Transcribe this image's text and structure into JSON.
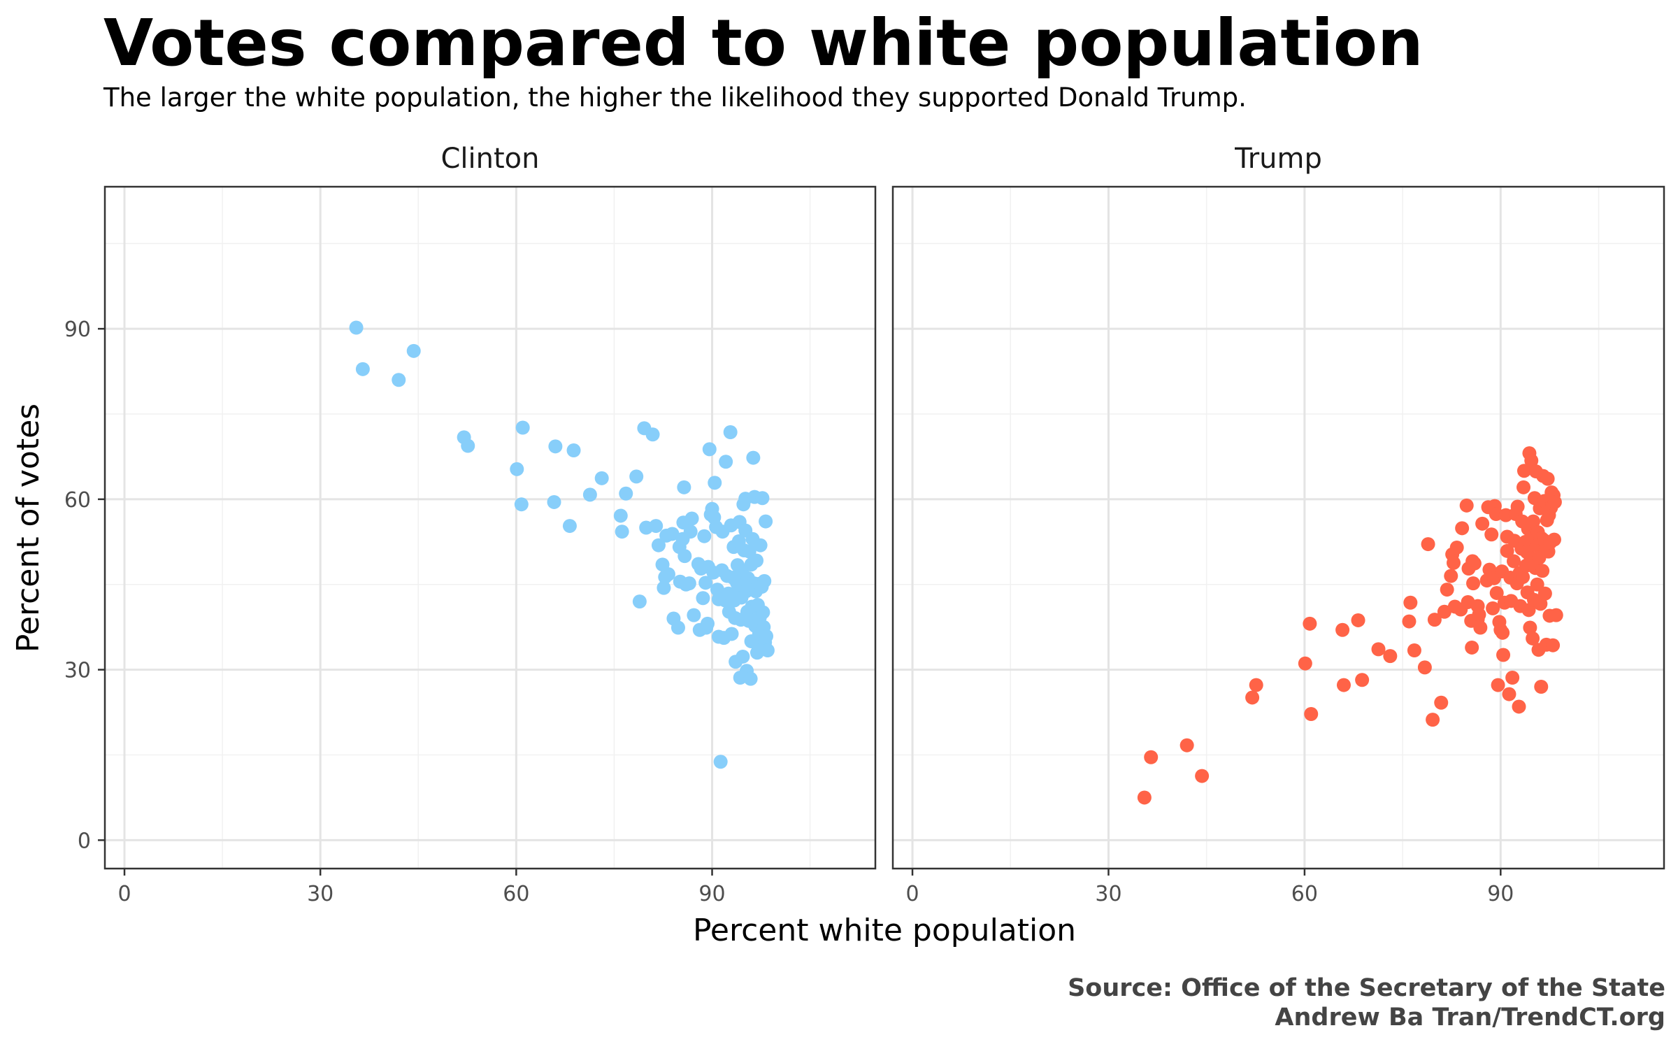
{
  "title": "Votes compared to white population",
  "subtitle": "The larger the white population, the higher the likelihood they supported Donald Trump.",
  "caption": {
    "line1": "Source: Office of the Secretary of the State",
    "line2": "Andrew Ba Tran/TrendCT.org"
  },
  "chart_data": {
    "type": "scatter",
    "xlabel": "Percent white population",
    "ylabel": "Percent of votes",
    "xlim": [
      -3,
      115
    ],
    "ylim": [
      -5,
      115
    ],
    "x_ticks": [
      0,
      30,
      60,
      90
    ],
    "y_ticks": [
      0,
      30,
      60,
      90
    ],
    "grid": true,
    "panels": [
      {
        "name": "Clinton",
        "color": "#87CEFA",
        "points": [
          [
            35.5,
            90.2
          ],
          [
            36.5,
            82.9
          ],
          [
            42.0,
            81.0
          ],
          [
            44.3,
            86.1
          ],
          [
            52.0,
            70.9
          ],
          [
            52.6,
            69.4
          ],
          [
            60.1,
            65.3
          ],
          [
            61.0,
            72.6
          ],
          [
            60.8,
            59.1
          ],
          [
            65.8,
            59.5
          ],
          [
            66.0,
            69.3
          ],
          [
            68.2,
            55.3
          ],
          [
            68.8,
            68.6
          ],
          [
            71.3,
            60.8
          ],
          [
            73.1,
            63.7
          ],
          [
            76.0,
            57.1
          ],
          [
            76.2,
            54.3
          ],
          [
            76.8,
            61.0
          ],
          [
            78.4,
            64.0
          ],
          [
            78.9,
            42.0
          ],
          [
            79.6,
            72.5
          ],
          [
            79.9,
            55.0
          ],
          [
            80.9,
            71.4
          ],
          [
            81.4,
            55.3
          ],
          [
            81.8,
            51.9
          ],
          [
            82.4,
            48.5
          ],
          [
            82.6,
            44.4
          ],
          [
            82.8,
            46.3
          ],
          [
            83.0,
            53.6
          ],
          [
            83.3,
            46.8
          ],
          [
            83.9,
            53.9
          ],
          [
            84.1,
            39.0
          ],
          [
            84.8,
            37.4
          ],
          [
            85.0,
            51.6
          ],
          [
            85.1,
            45.5
          ],
          [
            85.5,
            53.0
          ],
          [
            85.6,
            55.9
          ],
          [
            85.7,
            62.1
          ],
          [
            85.8,
            50.0
          ],
          [
            86.0,
            45.0
          ],
          [
            86.5,
            45.2
          ],
          [
            86.7,
            54.3
          ],
          [
            86.9,
            56.6
          ],
          [
            87.2,
            39.6
          ],
          [
            87.9,
            48.6
          ],
          [
            88.1,
            37.0
          ],
          [
            88.3,
            47.8
          ],
          [
            88.6,
            42.6
          ],
          [
            88.8,
            53.5
          ],
          [
            89.0,
            45.3
          ],
          [
            89.1,
            37.4
          ],
          [
            89.3,
            38.1
          ],
          [
            89.4,
            48.1
          ],
          [
            89.6,
            68.8
          ],
          [
            89.8,
            57.3
          ],
          [
            90.0,
            58.3
          ],
          [
            90.2,
            47.1
          ],
          [
            90.3,
            56.8
          ],
          [
            90.4,
            62.9
          ],
          [
            90.6,
            55.1
          ],
          [
            90.8,
            44.1
          ],
          [
            91.0,
            42.4
          ],
          [
            91.0,
            35.8
          ],
          [
            91.3,
            13.8
          ],
          [
            91.5,
            47.5
          ],
          [
            91.6,
            54.3
          ],
          [
            91.8,
            35.6
          ],
          [
            92.0,
            42.2
          ],
          [
            92.1,
            66.6
          ],
          [
            92.3,
            46.5
          ],
          [
            92.5,
            43.4
          ],
          [
            92.6,
            40.2
          ],
          [
            92.8,
            71.8
          ],
          [
            92.9,
            55.4
          ],
          [
            93.0,
            36.3
          ],
          [
            93.2,
            46.2
          ],
          [
            93.3,
            51.6
          ],
          [
            93.4,
            42.2
          ],
          [
            93.5,
            39.1
          ],
          [
            93.6,
            31.4
          ],
          [
            93.8,
            45.3
          ],
          [
            93.9,
            48.4
          ],
          [
            94.0,
            44.0
          ],
          [
            94.1,
            52.6
          ],
          [
            94.2,
            56.0
          ],
          [
            94.3,
            28.6
          ],
          [
            94.4,
            38.8
          ],
          [
            94.5,
            42.7
          ],
          [
            94.6,
            47.3
          ],
          [
            94.7,
            32.3
          ],
          [
            94.8,
            59.1
          ],
          [
            94.9,
            51.0
          ],
          [
            95.0,
            45.9
          ],
          [
            95.1,
            60.1
          ],
          [
            95.1,
            54.5
          ],
          [
            95.2,
            43.8
          ],
          [
            95.3,
            29.8
          ],
          [
            95.4,
            40.2
          ],
          [
            95.5,
            46.1
          ],
          [
            95.6,
            38.6
          ],
          [
            95.7,
            50.8
          ],
          [
            95.8,
            44.7
          ],
          [
            95.9,
            28.4
          ],
          [
            96.0,
            48.5
          ],
          [
            96.0,
            35.0
          ],
          [
            96.1,
            41.1
          ],
          [
            96.2,
            53.0
          ],
          [
            96.3,
            67.3
          ],
          [
            96.4,
            45.2
          ],
          [
            96.5,
            60.4
          ],
          [
            96.6,
            37.7
          ],
          [
            96.7,
            43.8
          ],
          [
            96.8,
            49.2
          ],
          [
            96.9,
            33.0
          ],
          [
            97.0,
            41.4
          ],
          [
            97.1,
            45.1
          ],
          [
            97.2,
            36.3
          ],
          [
            97.3,
            39.2
          ],
          [
            97.4,
            51.9
          ],
          [
            97.5,
            34.1
          ],
          [
            97.6,
            44.6
          ],
          [
            97.7,
            60.2
          ],
          [
            97.8,
            40.1
          ],
          [
            97.9,
            37.5
          ],
          [
            98.0,
            45.6
          ],
          [
            98.1,
            34.8
          ],
          [
            98.2,
            56.1
          ],
          [
            98.3,
            35.9
          ],
          [
            98.5,
            33.4
          ]
        ]
      },
      {
        "name": "Trump",
        "color": "#FF6347",
        "points": [
          [
            35.5,
            7.5
          ],
          [
            36.5,
            14.6
          ],
          [
            42.0,
            16.7
          ],
          [
            44.3,
            11.3
          ],
          [
            52.0,
            25.1
          ],
          [
            52.6,
            27.3
          ],
          [
            60.1,
            31.1
          ],
          [
            61.0,
            22.2
          ],
          [
            60.8,
            38.1
          ],
          [
            65.8,
            37.0
          ],
          [
            66.0,
            27.3
          ],
          [
            68.2,
            38.7
          ],
          [
            68.8,
            28.2
          ],
          [
            71.3,
            33.6
          ],
          [
            73.1,
            32.4
          ],
          [
            76.0,
            38.5
          ],
          [
            76.2,
            41.8
          ],
          [
            76.8,
            33.4
          ],
          [
            78.4,
            30.4
          ],
          [
            78.9,
            52.1
          ],
          [
            79.6,
            21.2
          ],
          [
            79.9,
            38.8
          ],
          [
            80.9,
            24.2
          ],
          [
            81.4,
            40.2
          ],
          [
            81.8,
            44.1
          ],
          [
            82.4,
            46.5
          ],
          [
            82.6,
            50.3
          ],
          [
            82.8,
            48.8
          ],
          [
            83.0,
            41.1
          ],
          [
            83.3,
            51.5
          ],
          [
            83.9,
            40.6
          ],
          [
            84.1,
            54.9
          ],
          [
            84.8,
            58.9
          ],
          [
            85.0,
            41.9
          ],
          [
            85.1,
            47.8
          ],
          [
            85.5,
            38.6
          ],
          [
            85.6,
            33.9
          ],
          [
            85.7,
            49.1
          ],
          [
            85.8,
            45.2
          ],
          [
            86.0,
            48.7
          ],
          [
            86.5,
            38.9
          ],
          [
            86.5,
            41.2
          ],
          [
            86.7,
            39.7
          ],
          [
            86.9,
            37.4
          ],
          [
            87.2,
            55.7
          ],
          [
            87.9,
            45.7
          ],
          [
            88.1,
            58.6
          ],
          [
            88.3,
            47.6
          ],
          [
            88.6,
            53.8
          ],
          [
            88.8,
            40.8
          ],
          [
            89.0,
            46.1
          ],
          [
            89.1,
            58.8
          ],
          [
            89.3,
            57.4
          ],
          [
            89.4,
            43.5
          ],
          [
            89.6,
            27.3
          ],
          [
            89.8,
            38.4
          ],
          [
            90.0,
            37.0
          ],
          [
            90.2,
            47.3
          ],
          [
            90.3,
            36.5
          ],
          [
            90.4,
            32.6
          ],
          [
            90.6,
            41.8
          ],
          [
            90.8,
            57.2
          ],
          [
            91.0,
            50.9
          ],
          [
            91.0,
            53.4
          ],
          [
            91.3,
            25.7
          ],
          [
            91.5,
            46.2
          ],
          [
            91.6,
            42.1
          ],
          [
            91.8,
            28.6
          ],
          [
            92.0,
            49.1
          ],
          [
            92.1,
            52.7
          ],
          [
            92.3,
            57.4
          ],
          [
            92.5,
            45.2
          ],
          [
            92.6,
            58.7
          ],
          [
            92.8,
            23.5
          ],
          [
            92.9,
            47.0
          ],
          [
            93.0,
            41.2
          ],
          [
            93.2,
            51.3
          ],
          [
            93.3,
            56.1
          ],
          [
            93.4,
            46.3
          ],
          [
            93.5,
            62.1
          ],
          [
            93.6,
            65.0
          ],
          [
            93.8,
            52.5
          ],
          [
            93.9,
            48.3
          ],
          [
            94.0,
            50.7
          ],
          [
            94.1,
            43.6
          ],
          [
            94.2,
            54.8
          ],
          [
            94.3,
            40.5
          ],
          [
            94.4,
            68.1
          ],
          [
            94.5,
            37.4
          ],
          [
            94.6,
            49.6
          ],
          [
            94.7,
            66.8
          ],
          [
            94.8,
            53.4
          ],
          [
            94.9,
            35.5
          ],
          [
            95.0,
            56.1
          ],
          [
            95.1,
            42.3
          ],
          [
            95.2,
            60.2
          ],
          [
            95.3,
            47.9
          ],
          [
            95.4,
            64.9
          ],
          [
            95.5,
            51.8
          ],
          [
            95.6,
            45.0
          ],
          [
            95.7,
            54.2
          ],
          [
            95.8,
            33.5
          ],
          [
            95.9,
            49.7
          ],
          [
            96.0,
            58.4
          ],
          [
            96.1,
            41.6
          ],
          [
            96.2,
            27.0
          ],
          [
            96.3,
            53.1
          ],
          [
            96.4,
            47.4
          ],
          [
            96.5,
            64.1
          ],
          [
            96.6,
            52.8
          ],
          [
            96.7,
            59.7
          ],
          [
            96.8,
            43.4
          ],
          [
            96.9,
            51.6
          ],
          [
            97.0,
            34.4
          ],
          [
            97.1,
            56.3
          ],
          [
            97.2,
            63.6
          ],
          [
            97.3,
            50.8
          ],
          [
            97.4,
            57.2
          ],
          [
            97.5,
            39.5
          ],
          [
            97.6,
            52.4
          ],
          [
            97.7,
            58.5
          ],
          [
            97.8,
            61.2
          ],
          [
            97.9,
            59.3
          ],
          [
            98.0,
            34.3
          ],
          [
            98.1,
            60.7
          ],
          [
            98.2,
            52.9
          ],
          [
            98.3,
            59.5
          ],
          [
            98.5,
            39.6
          ]
        ]
      }
    ]
  }
}
